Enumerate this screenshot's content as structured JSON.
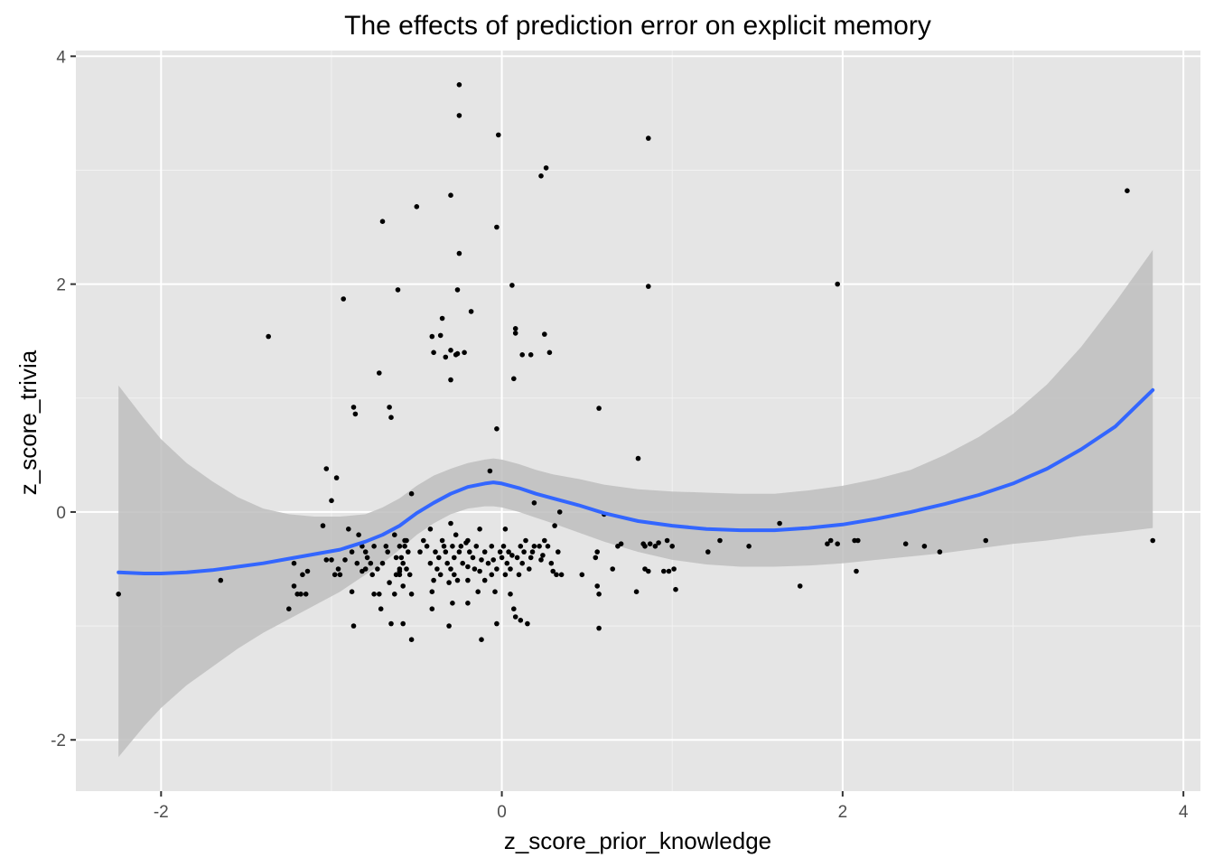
{
  "chart_data": {
    "type": "scatter",
    "title": "The effects of prediction error on explicit memory",
    "xlabel": "z_score_prior_knowledge",
    "ylabel": "z_score_trivia",
    "xlim": [
      -2.5,
      4.1
    ],
    "ylim": [
      -2.45,
      4.05
    ],
    "x_ticks": [
      -2,
      0,
      2,
      4
    ],
    "y_ticks": [
      -2,
      0,
      2,
      4
    ],
    "grid": true,
    "background": "#e5e5e5",
    "point_color": "#000000",
    "smooth_color": "#3366ff",
    "ribbon_color": "#bebebe",
    "points": [
      [
        -2.25,
        -0.72
      ],
      [
        -1.65,
        -0.6
      ],
      [
        -1.37,
        1.54
      ],
      [
        -1.25,
        -0.85
      ],
      [
        -1.22,
        -0.45
      ],
      [
        -1.22,
        -0.65
      ],
      [
        -1.2,
        -0.72
      ],
      [
        -1.18,
        -0.72
      ],
      [
        -1.17,
        -0.55
      ],
      [
        -1.15,
        -0.72
      ],
      [
        -1.14,
        -0.52
      ],
      [
        -1.05,
        -0.12
      ],
      [
        -1.03,
        -0.42
      ],
      [
        -1.03,
        0.38
      ],
      [
        -1.0,
        0.1
      ],
      [
        -1.0,
        -0.42
      ],
      [
        -0.98,
        -0.55
      ],
      [
        -0.96,
        -0.5
      ],
      [
        -0.97,
        0.3
      ],
      [
        -0.93,
        1.87
      ],
      [
        -0.95,
        -0.55
      ],
      [
        -0.92,
        -0.42
      ],
      [
        -0.9,
        -0.15
      ],
      [
        -0.88,
        -0.35
      ],
      [
        -0.88,
        -0.7
      ],
      [
        -0.87,
        -1.0
      ],
      [
        -0.87,
        0.92
      ],
      [
        -0.86,
        0.86
      ],
      [
        -0.85,
        -0.45
      ],
      [
        -0.84,
        -0.2
      ],
      [
        -0.82,
        -0.3
      ],
      [
        -0.82,
        -0.52
      ],
      [
        -0.8,
        -0.35
      ],
      [
        -0.8,
        -0.5
      ],
      [
        -0.79,
        -0.4
      ],
      [
        -0.77,
        -0.45
      ],
      [
        -0.76,
        -0.55
      ],
      [
        -0.75,
        -0.72
      ],
      [
        -0.75,
        -0.3
      ],
      [
        -0.73,
        -0.5
      ],
      [
        -0.72,
        -0.72
      ],
      [
        -0.71,
        -0.85
      ],
      [
        -0.72,
        1.22
      ],
      [
        -0.7,
        -0.45
      ],
      [
        -0.68,
        -0.3
      ],
      [
        -0.67,
        -0.35
      ],
      [
        -0.66,
        -0.62
      ],
      [
        -0.65,
        -0.98
      ],
      [
        -0.63,
        -0.72
      ],
      [
        -0.62,
        -0.4
      ],
      [
        -0.62,
        -0.55
      ],
      [
        -0.63,
        -0.2
      ],
      [
        -0.6,
        -0.3
      ],
      [
        -0.6,
        -0.5
      ],
      [
        -0.59,
        -0.4
      ],
      [
        -0.58,
        -0.45
      ],
      [
        -0.7,
        2.55
      ],
      [
        -0.66,
        0.92
      ],
      [
        -0.65,
        0.83
      ],
      [
        -0.6,
        -0.55
      ],
      [
        -0.57,
        -0.3
      ],
      [
        -0.56,
        -0.25
      ],
      [
        -0.56,
        -0.5
      ],
      [
        -0.6,
        -0.52
      ],
      [
        -0.61,
        1.95
      ],
      [
        -0.58,
        -0.98
      ],
      [
        -0.58,
        -0.65
      ],
      [
        -0.57,
        -0.25
      ],
      [
        -0.55,
        -0.35
      ],
      [
        -0.54,
        -0.55
      ],
      [
        -0.53,
        -0.72
      ],
      [
        -0.53,
        -1.12
      ],
      [
        -0.53,
        0.16
      ],
      [
        -0.5,
        2.68
      ],
      [
        -0.48,
        -0.35
      ],
      [
        -0.46,
        -0.25
      ],
      [
        -0.44,
        -0.3
      ],
      [
        -0.42,
        -0.15
      ],
      [
        -0.42,
        -0.45
      ],
      [
        -0.41,
        -0.7
      ],
      [
        -0.41,
        -0.85
      ],
      [
        -0.41,
        1.54
      ],
      [
        -0.4,
        -0.6
      ],
      [
        -0.39,
        -0.35
      ],
      [
        -0.38,
        -0.5
      ],
      [
        -0.37,
        -0.4
      ],
      [
        -0.36,
        -0.55
      ],
      [
        -0.35,
        -0.25
      ],
      [
        -0.4,
        1.4
      ],
      [
        -0.36,
        1.55
      ],
      [
        -0.35,
        1.7
      ],
      [
        -0.34,
        -0.3
      ],
      [
        -0.33,
        -0.35
      ],
      [
        -0.33,
        1.36
      ],
      [
        -0.32,
        -0.45
      ],
      [
        -0.31,
        -0.62
      ],
      [
        -0.31,
        -1.0
      ],
      [
        -0.3,
        -0.5
      ],
      [
        -0.3,
        -0.1
      ],
      [
        -0.29,
        -0.3
      ],
      [
        -0.29,
        -0.8
      ],
      [
        -0.3,
        1.42
      ],
      [
        -0.28,
        -0.4
      ],
      [
        -0.28,
        -0.55
      ],
      [
        -0.27,
        -0.2
      ],
      [
        -0.26,
        -0.6
      ],
      [
        -0.25,
        -0.35
      ],
      [
        -0.24,
        -0.3
      ],
      [
        -0.23,
        -0.45
      ],
      [
        -0.3,
        2.78
      ],
      [
        -0.3,
        1.16
      ],
      [
        -0.27,
        1.38
      ],
      [
        -0.26,
        1.39
      ],
      [
        -0.26,
        1.95
      ],
      [
        -0.25,
        2.27
      ],
      [
        -0.25,
        3.48
      ],
      [
        -0.25,
        3.75
      ],
      [
        -0.22,
        1.4
      ],
      [
        -0.21,
        -0.27
      ],
      [
        -0.2,
        -0.48
      ],
      [
        -0.2,
        -0.6
      ],
      [
        -0.2,
        -0.8
      ],
      [
        -0.2,
        -0.25
      ],
      [
        -0.19,
        -0.35
      ],
      [
        -0.18,
        1.76
      ],
      [
        -0.17,
        -0.4
      ],
      [
        -0.16,
        -0.5
      ],
      [
        -0.15,
        -0.3
      ],
      [
        -0.14,
        -0.7
      ],
      [
        -0.13,
        -0.52
      ],
      [
        -0.13,
        -0.15
      ],
      [
        -0.12,
        -0.42
      ],
      [
        -0.12,
        -1.12
      ],
      [
        -0.1,
        -0.6
      ],
      [
        -0.1,
        -0.35
      ],
      [
        -0.08,
        -0.45
      ],
      [
        -0.07,
        0.36
      ],
      [
        -0.06,
        -0.55
      ],
      [
        -0.06,
        -0.3
      ],
      [
        -0.05,
        -0.42
      ],
      [
        -0.04,
        -0.7
      ],
      [
        -0.03,
        -0.5
      ],
      [
        -0.03,
        -0.98
      ],
      [
        -0.03,
        0.73
      ],
      [
        -0.03,
        2.5
      ],
      [
        -0.02,
        3.31
      ],
      [
        -0.01,
        -0.35
      ],
      [
        0.0,
        -0.4
      ],
      [
        0.01,
        -0.3
      ],
      [
        0.02,
        -0.55
      ],
      [
        0.02,
        -0.15
      ],
      [
        0.03,
        -0.45
      ],
      [
        0.04,
        -0.35
      ],
      [
        0.05,
        -0.5
      ],
      [
        0.05,
        -0.72
      ],
      [
        0.06,
        -0.38
      ],
      [
        0.06,
        1.99
      ],
      [
        0.07,
        -0.85
      ],
      [
        0.07,
        1.17
      ],
      [
        0.08,
        1.57
      ],
      [
        0.08,
        1.61
      ],
      [
        0.08,
        -0.92
      ],
      [
        0.09,
        -0.4
      ],
      [
        0.1,
        -0.55
      ],
      [
        0.11,
        -0.3
      ],
      [
        0.11,
        -0.95
      ],
      [
        0.12,
        -0.45
      ],
      [
        0.13,
        -0.35
      ],
      [
        0.14,
        -0.25
      ],
      [
        0.15,
        -0.98
      ],
      [
        0.16,
        -0.5
      ],
      [
        0.17,
        -0.4
      ],
      [
        0.18,
        -0.35
      ],
      [
        0.19,
        -0.3
      ],
      [
        0.19,
        0.08
      ],
      [
        0.12,
        1.38
      ],
      [
        0.17,
        1.38
      ],
      [
        0.22,
        -0.3
      ],
      [
        0.23,
        -0.42
      ],
      [
        0.23,
        2.95
      ],
      [
        0.24,
        -0.38
      ],
      [
        0.25,
        -0.25
      ],
      [
        0.25,
        1.56
      ],
      [
        0.26,
        3.02
      ],
      [
        0.27,
        -0.3
      ],
      [
        0.28,
        1.4
      ],
      [
        0.29,
        -0.45
      ],
      [
        0.3,
        -0.52
      ],
      [
        0.31,
        -0.12
      ],
      [
        0.32,
        -0.55
      ],
      [
        0.33,
        -0.35
      ],
      [
        0.34,
        0.0
      ],
      [
        0.35,
        -0.55
      ],
      [
        0.47,
        -0.55
      ],
      [
        0.55,
        -0.4
      ],
      [
        0.56,
        -0.35
      ],
      [
        0.56,
        -0.65
      ],
      [
        0.57,
        -0.72
      ],
      [
        0.57,
        -1.02
      ],
      [
        0.57,
        0.91
      ],
      [
        0.6,
        -0.02
      ],
      [
        0.65,
        -0.5
      ],
      [
        0.68,
        -0.3
      ],
      [
        0.7,
        -0.28
      ],
      [
        0.79,
        -0.7
      ],
      [
        0.8,
        0.47
      ],
      [
        0.83,
        -0.28
      ],
      [
        0.84,
        -0.3
      ],
      [
        0.84,
        -0.5
      ],
      [
        0.86,
        -0.52
      ],
      [
        0.86,
        3.28
      ],
      [
        0.86,
        1.98
      ],
      [
        0.87,
        -0.28
      ],
      [
        0.9,
        -0.3
      ],
      [
        0.92,
        -0.27
      ],
      [
        0.95,
        -0.52
      ],
      [
        0.97,
        -0.25
      ],
      [
        0.98,
        -0.52
      ],
      [
        1.0,
        -0.3
      ],
      [
        1.01,
        -0.5
      ],
      [
        1.02,
        -0.68
      ],
      [
        1.21,
        -0.35
      ],
      [
        1.28,
        -0.25
      ],
      [
        1.45,
        -0.3
      ],
      [
        1.63,
        -0.1
      ],
      [
        1.75,
        -0.65
      ],
      [
        1.91,
        -0.28
      ],
      [
        1.93,
        -0.25
      ],
      [
        1.97,
        -0.28
      ],
      [
        1.97,
        2.0
      ],
      [
        2.07,
        -0.25
      ],
      [
        2.09,
        -0.25
      ],
      [
        2.08,
        -0.52
      ],
      [
        2.37,
        -0.28
      ],
      [
        2.48,
        -0.3
      ],
      [
        2.57,
        -0.35
      ],
      [
        2.84,
        -0.25
      ],
      [
        3.67,
        2.82
      ],
      [
        3.82,
        -0.25
      ]
    ],
    "smooth": {
      "x": [
        -2.25,
        -2.1,
        -2.0,
        -1.85,
        -1.7,
        -1.55,
        -1.4,
        -1.25,
        -1.1,
        -0.95,
        -0.8,
        -0.7,
        -0.6,
        -0.5,
        -0.4,
        -0.3,
        -0.2,
        -0.1,
        -0.05,
        0.0,
        0.1,
        0.2,
        0.3,
        0.45,
        0.6,
        0.8,
        1.0,
        1.2,
        1.4,
        1.6,
        1.8,
        2.0,
        2.2,
        2.4,
        2.6,
        2.8,
        3.0,
        3.2,
        3.4,
        3.6,
        3.82
      ],
      "y": [
        -0.53,
        -0.54,
        -0.54,
        -0.53,
        -0.51,
        -0.48,
        -0.45,
        -0.41,
        -0.37,
        -0.33,
        -0.26,
        -0.2,
        -0.12,
        -0.01,
        0.08,
        0.16,
        0.22,
        0.25,
        0.26,
        0.25,
        0.21,
        0.16,
        0.12,
        0.06,
        -0.01,
        -0.08,
        -0.12,
        -0.15,
        -0.16,
        -0.16,
        -0.14,
        -0.11,
        -0.06,
        0.0,
        0.07,
        0.15,
        0.25,
        0.38,
        0.55,
        0.75,
        1.07
      ]
    },
    "ribbon": {
      "x": [
        -2.25,
        -2.1,
        -2.0,
        -1.85,
        -1.7,
        -1.55,
        -1.4,
        -1.25,
        -1.1,
        -0.95,
        -0.8,
        -0.7,
        -0.6,
        -0.5,
        -0.4,
        -0.3,
        -0.2,
        -0.1,
        -0.05,
        0.0,
        0.1,
        0.2,
        0.3,
        0.45,
        0.6,
        0.8,
        1.0,
        1.2,
        1.4,
        1.6,
        1.8,
        2.0,
        2.2,
        2.4,
        2.6,
        2.8,
        3.0,
        3.2,
        3.4,
        3.6,
        3.82
      ],
      "ymin": [
        -2.15,
        -1.88,
        -1.72,
        -1.52,
        -1.36,
        -1.2,
        -1.06,
        -0.94,
        -0.82,
        -0.7,
        -0.55,
        -0.45,
        -0.33,
        -0.2,
        -0.1,
        -0.02,
        0.03,
        0.05,
        0.05,
        0.04,
        0.0,
        -0.05,
        -0.1,
        -0.18,
        -0.26,
        -0.35,
        -0.42,
        -0.46,
        -0.48,
        -0.48,
        -0.47,
        -0.45,
        -0.42,
        -0.39,
        -0.36,
        -0.32,
        -0.28,
        -0.25,
        -0.21,
        -0.18,
        -0.14
      ],
      "ymax": [
        1.11,
        0.82,
        0.64,
        0.43,
        0.27,
        0.13,
        0.03,
        -0.02,
        -0.04,
        -0.04,
        -0.02,
        0.04,
        0.12,
        0.23,
        0.32,
        0.38,
        0.43,
        0.46,
        0.47,
        0.46,
        0.42,
        0.37,
        0.33,
        0.29,
        0.24,
        0.2,
        0.18,
        0.17,
        0.16,
        0.16,
        0.19,
        0.23,
        0.29,
        0.37,
        0.5,
        0.66,
        0.86,
        1.12,
        1.45,
        1.84,
        2.3
      ]
    }
  }
}
